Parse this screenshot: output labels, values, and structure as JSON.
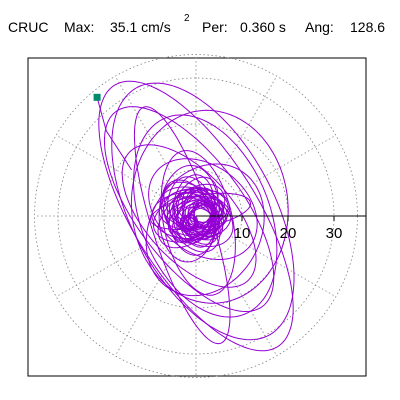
{
  "header": {
    "station": "CRUC",
    "max_label": "Max:",
    "max_value": "35.1 cm/s",
    "max_exponent": "2",
    "period_label": "Per:",
    "period_value": "0.360 s",
    "angle_label": "Ang:",
    "angle_value": "128.6"
  },
  "colors": {
    "trace": "#9400d3",
    "marker": "#008b6b",
    "grid": "#808080",
    "axis": "#000000"
  },
  "chart_data": {
    "type": "scatter",
    "title": "",
    "xlabel": "",
    "ylabel": "",
    "polar_grid": true,
    "radial_ticks": [
      10,
      20,
      30
    ],
    "radial_tick_labels": [
      "10",
      "20",
      "30"
    ],
    "axis_range": [
      -38,
      38
    ],
    "max_amplitude": 35.1,
    "peak_angle_deg": 128.6,
    "start_marker": {
      "x": -21.5,
      "y": 25.8
    },
    "orbits": [
      {
        "a": 33.5,
        "b": 13.5,
        "rot": 122,
        "cx": 0,
        "cy": 0
      },
      {
        "a": 30.5,
        "b": 15.5,
        "rot": 118,
        "cx": 1.5,
        "cy": 1
      },
      {
        "a": 26.5,
        "b": 11.5,
        "rot": 127,
        "cx": -1.5,
        "cy": 1.5
      },
      {
        "a": 23,
        "b": 14,
        "rot": 112,
        "cx": 2,
        "cy": 0
      },
      {
        "a": 19,
        "b": 9.5,
        "rot": 132,
        "cx": -1.5,
        "cy": 0
      },
      {
        "a": 16,
        "b": 7.5,
        "rot": 102,
        "cx": 0.5,
        "cy": -1.5
      },
      {
        "a": 13,
        "b": 9.5,
        "rot": 142,
        "cx": 1.5,
        "cy": 1.5
      },
      {
        "a": 10.5,
        "b": 6.5,
        "rot": 87,
        "cx": -1.5,
        "cy": 0.5
      },
      {
        "a": 8,
        "b": 5.5,
        "rot": 152,
        "cx": 0.5,
        "cy": -0.5
      },
      {
        "a": 6,
        "b": 3.5,
        "rot": 62,
        "cx": 0,
        "cy": 0.5
      },
      {
        "a": 4,
        "b": 2.5,
        "rot": 22,
        "cx": -0.5,
        "cy": 0
      },
      {
        "a": 27,
        "b": 6.5,
        "rot": 108,
        "cx": -3,
        "cy": -2
      },
      {
        "a": 21,
        "b": 17,
        "rot": 95,
        "cx": 3,
        "cy": 2
      },
      {
        "a": 15,
        "b": 12,
        "rot": 60,
        "cx": 2,
        "cy": -3
      },
      {
        "a": 11,
        "b": 3.5,
        "rot": 10,
        "cx": 1,
        "cy": 1
      }
    ],
    "start_segment": [
      {
        "x": -21.5,
        "y": 25.8
      },
      {
        "x": -19.5,
        "y": 18.5
      },
      {
        "x": -14,
        "y": 10
      }
    ]
  }
}
